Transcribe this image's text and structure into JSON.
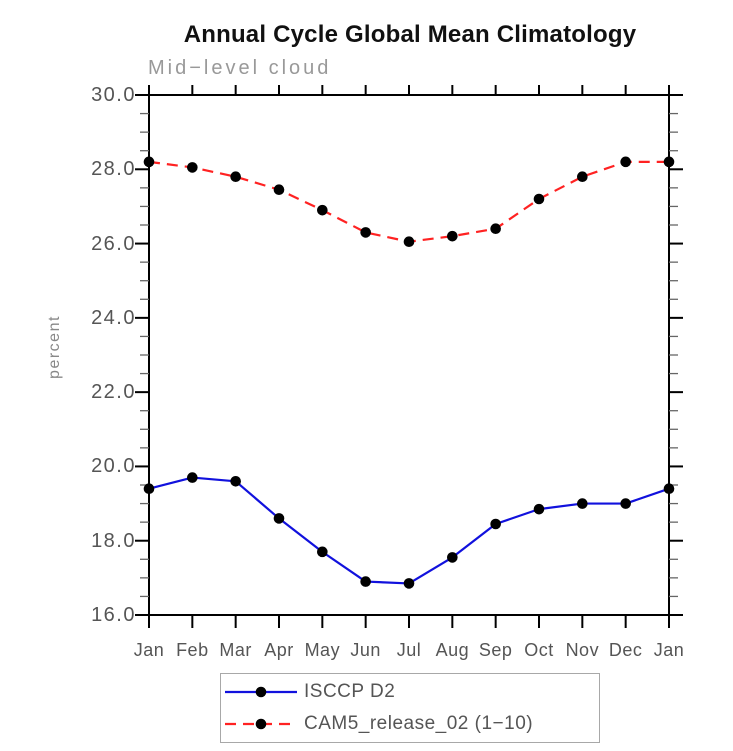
{
  "title": "Annual Cycle Global Mean Climatology",
  "subtitle": "Mid−level cloud",
  "ylabel": "percent",
  "chart_data": {
    "type": "line",
    "title": "Annual Cycle Global Mean Climatology",
    "subtitle": "Mid−level cloud",
    "xlabel": "",
    "ylabel": "percent",
    "categories": [
      "Jan",
      "Feb",
      "Mar",
      "Apr",
      "May",
      "Jun",
      "Jul",
      "Aug",
      "Sep",
      "Oct",
      "Nov",
      "Dec",
      "Jan"
    ],
    "series": [
      {
        "name": "ISCCP D2",
        "style": "solid",
        "color": "#1111dd",
        "marker": "filled-black-circle",
        "values": [
          19.4,
          19.7,
          19.6,
          18.6,
          17.7,
          16.9,
          16.85,
          17.55,
          18.45,
          18.85,
          19.0,
          19.0,
          19.4
        ]
      },
      {
        "name": "CAM5_release_02 (1−10)",
        "style": "dashed",
        "color": "#ff2222",
        "marker": "filled-black-circle",
        "values": [
          28.2,
          28.05,
          27.8,
          27.45,
          26.9,
          26.3,
          26.05,
          26.2,
          26.4,
          27.2,
          27.8,
          28.2,
          28.2
        ]
      }
    ],
    "ylim": [
      16.0,
      30.0
    ],
    "y_major_tick_values": [
      30.0,
      28.0,
      26.0,
      24.0,
      22.0,
      20.0,
      18.0,
      16.0
    ],
    "y_tick_labels": [
      "30.0",
      "28.0",
      "26.0",
      "24.0",
      "22.0",
      "20.0",
      "18.0",
      "16.0"
    ],
    "y_minor_step": 0.5,
    "grid": false,
    "legend_position": "bottom",
    "axis_color": "#000000",
    "tick_style": "outward-all-four-sides"
  }
}
